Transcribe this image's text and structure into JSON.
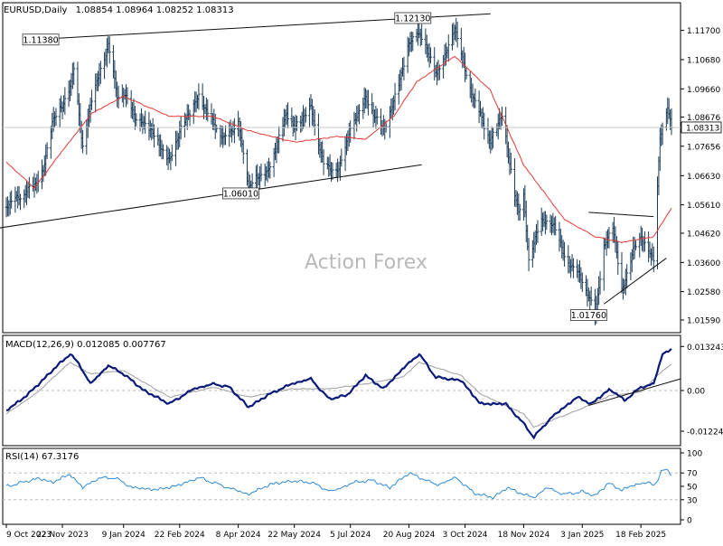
{
  "chart_data": [
    {
      "panel": "price",
      "type": "ohlc",
      "header": {
        "symbol": "EURUSD,Daily",
        "ohlc": "1.08854 1.08964 1.08252 1.08313"
      },
      "watermark": "Action Forex",
      "ylim": [
        1.0159,
        1.1213
      ],
      "yticks": [
        "1.11700",
        "1.10680",
        "1.09660",
        "1.08676",
        "1.07656",
        "1.06630",
        "1.05610",
        "1.04620",
        "1.03600",
        "1.02580",
        "1.01590"
      ],
      "current_price": "1.08313",
      "close_points": [
        [
          "2023-10-09",
          1.056
        ],
        [
          "2023-10-20",
          1.059
        ],
        [
          "2023-10-31",
          1.063
        ],
        [
          "2023-11-07",
          1.068
        ],
        [
          "2023-11-14",
          1.085
        ],
        [
          "2023-11-22",
          1.091
        ],
        [
          "2023-11-29",
          1.098
        ],
        [
          "2023-12-01",
          1.104
        ],
        [
          "2023-12-08",
          1.076
        ],
        [
          "2023-12-15",
          1.093
        ],
        [
          "2023-12-28",
          1.112
        ],
        [
          "2024-01-04",
          1.094
        ],
        [
          "2024-01-09",
          1.095
        ],
        [
          "2024-01-18",
          1.087
        ],
        [
          "2024-01-31",
          1.082
        ],
        [
          "2024-02-14",
          1.071
        ],
        [
          "2024-02-22",
          1.082
        ],
        [
          "2024-03-08",
          1.094
        ],
        [
          "2024-03-19",
          1.085
        ],
        [
          "2024-03-28",
          1.079
        ],
        [
          "2024-04-08",
          1.085
        ],
        [
          "2024-04-16",
          1.062
        ],
        [
          "2024-04-22",
          1.066
        ],
        [
          "2024-05-01",
          1.067
        ],
        [
          "2024-05-16",
          1.088
        ],
        [
          "2024-05-22",
          1.083
        ],
        [
          "2024-06-04",
          1.09
        ],
        [
          "2024-06-14",
          1.07
        ],
        [
          "2024-06-26",
          1.068
        ],
        [
          "2024-07-05",
          1.083
        ],
        [
          "2024-07-17",
          1.093
        ],
        [
          "2024-07-31",
          1.082
        ],
        [
          "2024-08-08",
          1.092
        ],
        [
          "2024-08-20",
          1.112
        ],
        [
          "2024-08-26",
          1.117
        ],
        [
          "2024-09-06",
          1.108
        ],
        [
          "2024-09-11",
          1.101
        ],
        [
          "2024-09-25",
          1.118
        ],
        [
          "2024-10-03",
          1.103
        ],
        [
          "2024-10-10",
          1.093
        ],
        [
          "2024-10-23",
          1.078
        ],
        [
          "2024-11-01",
          1.088
        ],
        [
          "2024-11-06",
          1.073
        ],
        [
          "2024-11-14",
          1.053
        ],
        [
          "2024-11-18",
          1.059
        ],
        [
          "2024-11-22",
          1.037
        ],
        [
          "2024-12-02",
          1.051
        ],
        [
          "2024-12-12",
          1.049
        ],
        [
          "2024-12-20",
          1.038
        ],
        [
          "2025-01-03",
          1.03
        ],
        [
          "2025-01-13",
          1.018
        ],
        [
          "2025-01-20",
          1.041
        ],
        [
          "2025-01-27",
          1.049
        ],
        [
          "2025-02-03",
          1.026
        ],
        [
          "2025-02-12",
          1.04
        ],
        [
          "2025-02-18",
          1.045
        ],
        [
          "2025-02-28",
          1.037
        ],
        [
          "2025-03-05",
          1.079
        ],
        [
          "2025-03-11",
          1.091
        ],
        [
          "2025-03-14",
          1.083
        ]
      ],
      "ma_points": [
        [
          "2023-10-09",
          1.071
        ],
        [
          "2023-10-31",
          1.062
        ],
        [
          "2023-11-22",
          1.075
        ],
        [
          "2023-12-15",
          1.088
        ],
        [
          "2024-01-09",
          1.094
        ],
        [
          "2024-02-14",
          1.087
        ],
        [
          "2024-03-19",
          1.087
        ],
        [
          "2024-04-16",
          1.082
        ],
        [
          "2024-05-22",
          1.078
        ],
        [
          "2024-06-26",
          1.08
        ],
        [
          "2024-07-17",
          1.079
        ],
        [
          "2024-08-08",
          1.087
        ],
        [
          "2024-08-26",
          1.099
        ],
        [
          "2024-09-25",
          1.108
        ],
        [
          "2024-10-23",
          1.096
        ],
        [
          "2024-11-18",
          1.07
        ],
        [
          "2024-12-20",
          1.051
        ],
        [
          "2025-01-13",
          1.045
        ],
        [
          "2025-02-03",
          1.043
        ],
        [
          "2025-02-28",
          1.045
        ],
        [
          "2025-03-14",
          1.055
        ]
      ],
      "trend_lines": [
        {
          "from": [
            "2023-10-31",
            1.1138
          ],
          "to": [
            "2024-08-26",
            1.1213
          ],
          "end": [
            "2024-10-23",
            1.1228
          ]
        },
        {
          "from": [
            "2023-10-03",
            1.048
          ],
          "to": [
            "2024-04-16",
            1.0601
          ],
          "end": [
            "2024-08-30",
            1.0701
          ]
        },
        {
          "from": [
            "2025-01-08",
            1.0535
          ],
          "to": [
            "2025-02-28",
            1.052
          ]
        },
        {
          "from": [
            "2025-01-20",
            1.0215
          ],
          "to": [
            "2025-03-10",
            1.0375
          ]
        }
      ],
      "labels": [
        {
          "text": "1.11380",
          "date": "2023-11-05",
          "price": 1.1138
        },
        {
          "text": "1.12130",
          "date": "2024-08-23",
          "price": 1.1213
        },
        {
          "text": "1.06010",
          "date": "2024-04-10",
          "price": 1.0601
        },
        {
          "text": "1.01760",
          "date": "2025-01-08",
          "price": 1.0176
        }
      ],
      "x_ticks": [
        "9 Oct 2023",
        "22 Nov 2023",
        "9 Jan 2024",
        "22 Feb 2024",
        "8 Apr 2024",
        "22 May 2024",
        "5 Jul 2024",
        "20 Aug 2024",
        "3 Oct 2024",
        "18 Nov 2024",
        "3 Jan 2025",
        "18 Feb 2025"
      ],
      "x_tick_dates": [
        "2023-10-09",
        "2023-11-22",
        "2024-01-09",
        "2024-02-22",
        "2024-04-08",
        "2024-05-22",
        "2024-07-05",
        "2024-08-20",
        "2024-10-03",
        "2024-11-18",
        "2025-01-03",
        "2025-02-18"
      ],
      "x_range": [
        "2023-10-09",
        "2025-03-14"
      ],
      "grid": false,
      "colors": {
        "price": "#1a3c5a",
        "ma": "#e53935",
        "trend": "#111111",
        "current_line": "#c8c8c8",
        "watermark": "#b9b9b9"
      }
    },
    {
      "panel": "macd",
      "type": "line",
      "title": "MACD(12,26,9) 0.012085 0.007767",
      "ylim": [
        -0.0155,
        0.0155
      ],
      "yticks": [
        "0.013243",
        "0.00",
        "-0.012245"
      ],
      "zero_label": "0.00",
      "macd_points": [
        [
          "2023-10-09",
          -0.006
        ],
        [
          "2023-10-20",
          -0.003
        ],
        [
          "2023-11-01",
          0.001
        ],
        [
          "2023-11-14",
          0.006
        ],
        [
          "2023-11-28",
          0.011
        ],
        [
          "2023-12-05",
          0.008
        ],
        [
          "2023-12-14",
          0.002
        ],
        [
          "2023-12-28",
          0.0075
        ],
        [
          "2024-01-09",
          0.005
        ],
        [
          "2024-01-25",
          0.0
        ],
        [
          "2024-02-14",
          -0.004
        ],
        [
          "2024-03-04",
          0.0005
        ],
        [
          "2024-03-20",
          0.002
        ],
        [
          "2024-04-01",
          0.001
        ],
        [
          "2024-04-16",
          -0.005
        ],
        [
          "2024-05-03",
          -0.001
        ],
        [
          "2024-05-20",
          0.002
        ],
        [
          "2024-06-04",
          0.0035
        ],
        [
          "2024-06-18",
          -0.0025
        ],
        [
          "2024-07-02",
          -0.0015
        ],
        [
          "2024-07-17",
          0.0045
        ],
        [
          "2024-07-31",
          0.0005
        ],
        [
          "2024-08-15",
          0.0065
        ],
        [
          "2024-08-28",
          0.011
        ],
        [
          "2024-09-10",
          0.004
        ],
        [
          "2024-09-30",
          0.003
        ],
        [
          "2024-10-15",
          -0.004
        ],
        [
          "2024-11-04",
          -0.004
        ],
        [
          "2024-11-18",
          -0.01
        ],
        [
          "2024-11-26",
          -0.014
        ],
        [
          "2024-12-10",
          -0.008
        ],
        [
          "2024-12-30",
          -0.002
        ],
        [
          "2025-01-10",
          -0.004
        ],
        [
          "2025-01-25",
          0.0005
        ],
        [
          "2025-02-05",
          -0.003
        ],
        [
          "2025-02-18",
          0.001
        ],
        [
          "2025-02-28",
          0.002
        ],
        [
          "2025-03-07",
          0.011
        ],
        [
          "2025-03-14",
          0.0125
        ]
      ],
      "signal_points": [
        [
          "2023-10-09",
          -0.007
        ],
        [
          "2023-11-01",
          -0.001
        ],
        [
          "2023-11-28",
          0.0085
        ],
        [
          "2023-12-14",
          0.005
        ],
        [
          "2024-01-09",
          0.006
        ],
        [
          "2024-02-14",
          -0.002
        ],
        [
          "2024-03-20",
          0.001
        ],
        [
          "2024-04-16",
          -0.002
        ],
        [
          "2024-05-20",
          0.0005
        ],
        [
          "2024-06-18",
          0.0005
        ],
        [
          "2024-07-17",
          0.002
        ],
        [
          "2024-08-15",
          0.004
        ],
        [
          "2024-08-28",
          0.0085
        ],
        [
          "2024-09-30",
          0.0045
        ],
        [
          "2024-10-15",
          -0.001
        ],
        [
          "2024-11-18",
          -0.007
        ],
        [
          "2024-11-26",
          -0.011
        ],
        [
          "2024-12-30",
          -0.006
        ],
        [
          "2025-01-25",
          -0.0015
        ],
        [
          "2025-02-18",
          -0.0005
        ],
        [
          "2025-03-07",
          0.006
        ],
        [
          "2025-03-14",
          0.0078
        ]
      ],
      "trend_lines": [
        {
          "from": [
            "2025-01-08",
            -0.0045
          ],
          "to": [
            "2025-03-14",
            0.0035
          ]
        }
      ],
      "colors": {
        "macd": "#0a1a7a",
        "signal": "#9e9e9e",
        "zero": "#bdbdbd",
        "trend": "#111111"
      }
    },
    {
      "panel": "rsi",
      "type": "line",
      "title": "RSI(14) 67.3176",
      "ylim": [
        0,
        100
      ],
      "yticks": [
        "100",
        "70",
        "50",
        "30",
        "0"
      ],
      "levels": [
        70,
        30
      ],
      "rsi_points": [
        [
          "2023-10-09",
          50
        ],
        [
          "2023-10-20",
          55
        ],
        [
          "2023-11-03",
          62
        ],
        [
          "2023-11-14",
          56
        ],
        [
          "2023-11-28",
          68
        ],
        [
          "2023-12-08",
          48
        ],
        [
          "2023-12-20",
          62
        ],
        [
          "2024-01-02",
          63
        ],
        [
          "2024-01-16",
          48
        ],
        [
          "2024-02-05",
          45
        ],
        [
          "2024-02-22",
          52
        ],
        [
          "2024-03-08",
          63
        ],
        [
          "2024-03-25",
          52
        ],
        [
          "2024-04-16",
          38
        ],
        [
          "2024-05-03",
          53
        ],
        [
          "2024-05-20",
          58
        ],
        [
          "2024-06-04",
          56
        ],
        [
          "2024-06-20",
          42
        ],
        [
          "2024-07-08",
          56
        ],
        [
          "2024-07-22",
          59
        ],
        [
          "2024-08-05",
          48
        ],
        [
          "2024-08-20",
          70
        ],
        [
          "2024-08-30",
          62
        ],
        [
          "2024-09-11",
          52
        ],
        [
          "2024-09-26",
          63
        ],
        [
          "2024-10-10",
          40
        ],
        [
          "2024-10-25",
          33
        ],
        [
          "2024-11-05",
          48
        ],
        [
          "2024-11-18",
          38
        ],
        [
          "2024-11-26",
          33
        ],
        [
          "2024-12-06",
          48
        ],
        [
          "2024-12-20",
          38
        ],
        [
          "2025-01-03",
          42
        ],
        [
          "2025-01-13",
          36
        ],
        [
          "2025-01-24",
          55
        ],
        [
          "2025-02-03",
          44
        ],
        [
          "2025-02-12",
          52
        ],
        [
          "2025-02-24",
          56
        ],
        [
          "2025-03-01",
          50
        ],
        [
          "2025-03-06",
          73
        ],
        [
          "2025-03-10",
          74
        ],
        [
          "2025-03-14",
          67
        ]
      ],
      "colors": {
        "rsi": "#2e8bd8",
        "levels": "#bdbdbd"
      }
    }
  ]
}
